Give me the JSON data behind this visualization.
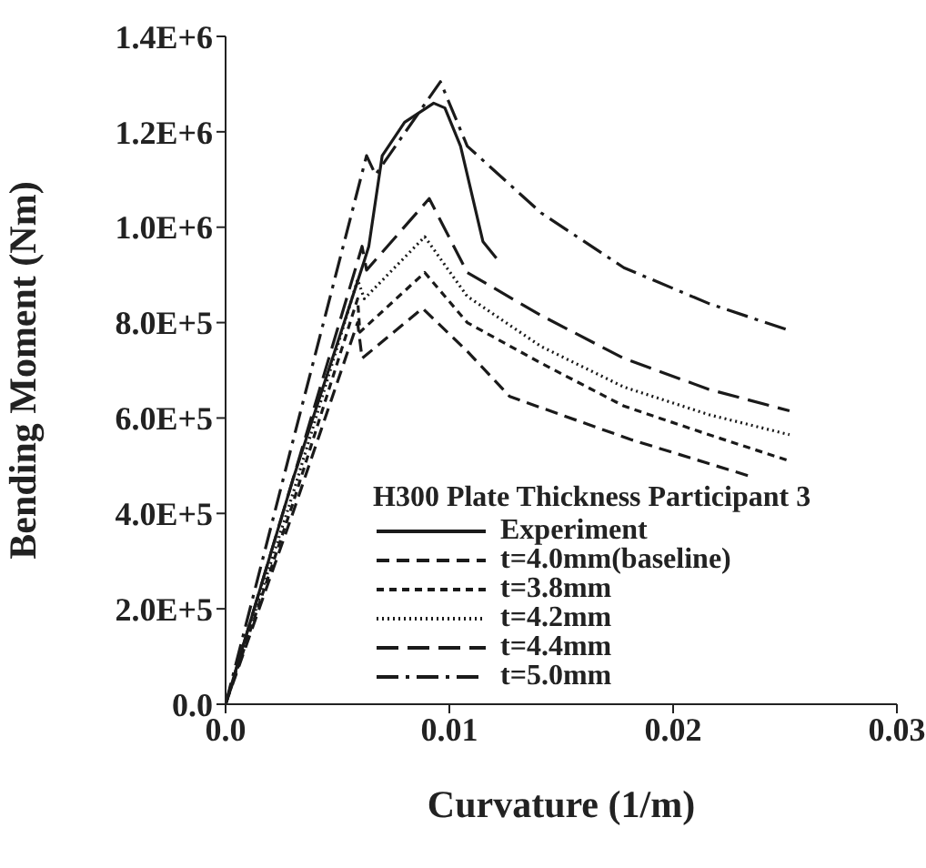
{
  "chart_data": {
    "type": "line",
    "xlabel": "Curvature (1/m)",
    "ylabel": "Bending Moment (Nm)",
    "legend_title": "H300  Plate Thickness Participant 3",
    "xlim": [
      0,
      0.03
    ],
    "xticks": [
      {
        "value": 0,
        "label": "0.0"
      },
      0.01,
      0.02,
      0.03
    ],
    "ylim": [
      0,
      1400000
    ],
    "yticks": [
      {
        "value": 0,
        "label": "0.0"
      },
      {
        "value": 200000,
        "label": "2.0E+5"
      },
      {
        "value": 400000,
        "label": "4.0E+5"
      },
      {
        "value": 600000,
        "label": "6.0E+5"
      },
      {
        "value": 800000,
        "label": "8.0E+5"
      },
      {
        "value": 1000000,
        "label": "1.0E+6"
      },
      {
        "value": 1200000,
        "label": "1.2E+6"
      },
      {
        "value": 1400000,
        "label": "1.4E+6"
      }
    ],
    "grid": false,
    "legend": "bottom right",
    "marker": "none",
    "series": [
      {
        "name": "Experiment",
        "color": "#1a1a1a",
        "line_style": "solid",
        "x": [
          0,
          0.003,
          0.0062,
          0.0064,
          0.007,
          0.008,
          0.0093,
          0.0098,
          0.0105,
          0.0115,
          0.0121
        ],
        "values": [
          0,
          470000,
          930000,
          960000,
          1150000,
          1220000,
          1260000,
          1250000,
          1170000,
          970000,
          935000
        ]
      },
      {
        "name": "t=4.0mm(baseline)",
        "color": "#1a1a1a",
        "line_style": "dashed",
        "x": [
          0,
          0.003,
          0.0059,
          0.0061,
          0.0088,
          0.0108,
          0.0127,
          0.0181,
          0.0235
        ],
        "values": [
          0,
          400000,
          800000,
          725000,
          830000,
          740000,
          645000,
          555000,
          477000
        ]
      },
      {
        "name": "t=3.8mm",
        "color": "#1a1a1a",
        "line_style": "shortdash",
        "x": [
          0,
          0.003,
          0.0059,
          0.006,
          0.0089,
          0.0108,
          0.0141,
          0.0178,
          0.0216,
          0.0252
        ],
        "values": [
          0,
          420000,
          850000,
          780000,
          905000,
          800000,
          715000,
          625000,
          565000,
          510000
        ]
      },
      {
        "name": "t=4.2mm",
        "color": "#1a1a1a",
        "line_style": "dotted",
        "x": [
          0,
          0.003,
          0.0059,
          0.0062,
          0.0089,
          0.0108,
          0.0141,
          0.0178,
          0.0216,
          0.0252
        ],
        "values": [
          0,
          440000,
          890000,
          850000,
          980000,
          855000,
          750000,
          665000,
          607000,
          565000
        ]
      },
      {
        "name": "t=4.4mm",
        "color": "#1a1a1a",
        "line_style": "longdash",
        "x": [
          0,
          0.003,
          0.0061,
          0.0063,
          0.0091,
          0.0108,
          0.0141,
          0.0178,
          0.0216,
          0.0252
        ],
        "values": [
          0,
          470000,
          960000,
          910000,
          1060000,
          905000,
          815000,
          725000,
          660000,
          615000
        ]
      },
      {
        "name": "t=5.0mm",
        "color": "#1a1a1a",
        "line_style": "dashdot",
        "x": [
          0,
          0.003,
          0.0063,
          0.0067,
          0.0096,
          0.0108,
          0.0141,
          0.0178,
          0.0216,
          0.0251
        ],
        "values": [
          0,
          550000,
          1150000,
          1110000,
          1305000,
          1170000,
          1030000,
          915000,
          840000,
          785000
        ]
      }
    ]
  }
}
